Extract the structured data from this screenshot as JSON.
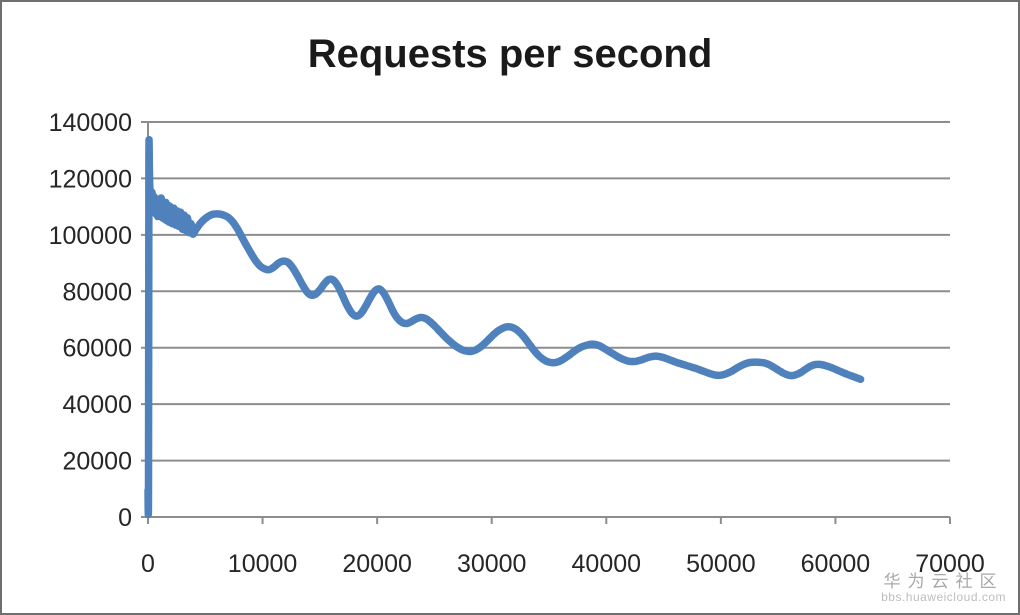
{
  "title": "Requests per second",
  "watermark": {
    "name": "华为云社区",
    "site": "bbs.huaweicloud.com"
  },
  "colors": {
    "line": "#4F81BD",
    "grid": "#8d8d8d",
    "axis_text": "#262626",
    "title_text": "#1a1a1a"
  },
  "chart_data": {
    "type": "line",
    "title": "Requests per second",
    "xlabel": "",
    "ylabel": "",
    "xlim": [
      0,
      70000
    ],
    "ylim": [
      0,
      140000
    ],
    "x_ticks": [
      0,
      10000,
      20000,
      30000,
      40000,
      50000,
      60000,
      70000
    ],
    "y_ticks": [
      0,
      20000,
      40000,
      60000,
      80000,
      100000,
      120000,
      140000
    ],
    "grid": "horizontal",
    "legend_position": "none",
    "series": [
      {
        "name": "Requests per second",
        "color": "#4F81BD",
        "smooth": true,
        "points": [
          [
            0,
            9500
          ],
          [
            40,
            9500
          ],
          [
            80,
            125500
          ],
          [
            120,
            123500
          ],
          [
            160,
            117000
          ],
          [
            250,
            113500
          ],
          [
            350,
            115000
          ],
          [
            450,
            109000
          ],
          [
            550,
            113500
          ],
          [
            650,
            107500
          ],
          [
            750,
            112500
          ],
          [
            850,
            106500
          ],
          [
            950,
            112000
          ],
          [
            1050,
            110000
          ],
          [
            1150,
            113000
          ],
          [
            1250,
            106000
          ],
          [
            1350,
            111000
          ],
          [
            1450,
            105500
          ],
          [
            1550,
            111500
          ],
          [
            1650,
            105000
          ],
          [
            1750,
            110500
          ],
          [
            1850,
            104500
          ],
          [
            1950,
            110000
          ],
          [
            2100,
            104000
          ],
          [
            2250,
            109500
          ],
          [
            2400,
            103500
          ],
          [
            2550,
            108500
          ],
          [
            2700,
            103000
          ],
          [
            2850,
            108000
          ],
          [
            3000,
            102000
          ],
          [
            3150,
            107000
          ],
          [
            3300,
            101500
          ],
          [
            3450,
            106000
          ],
          [
            3600,
            100800
          ],
          [
            3750,
            104000
          ],
          [
            3900,
            100300
          ],
          [
            4200,
            102000
          ],
          [
            4600,
            104200
          ],
          [
            5000,
            105800
          ],
          [
            5400,
            106900
          ],
          [
            5800,
            107400
          ],
          [
            6200,
            107400
          ],
          [
            6600,
            107000
          ],
          [
            7000,
            106200
          ],
          [
            7400,
            104600
          ],
          [
            7800,
            102200
          ],
          [
            8200,
            99200
          ],
          [
            8600,
            96200
          ],
          [
            9000,
            93400
          ],
          [
            9400,
            90800
          ],
          [
            9800,
            88900
          ],
          [
            10200,
            87900
          ],
          [
            10600,
            87700
          ],
          [
            11000,
            88600
          ],
          [
            11400,
            90000
          ],
          [
            11800,
            90700
          ],
          [
            12200,
            90300
          ],
          [
            12600,
            88500
          ],
          [
            13000,
            85900
          ],
          [
            13400,
            82900
          ],
          [
            13800,
            80200
          ],
          [
            14200,
            78700
          ],
          [
            14600,
            78900
          ],
          [
            15000,
            80500
          ],
          [
            15400,
            82700
          ],
          [
            15800,
            84200
          ],
          [
            16200,
            83900
          ],
          [
            16600,
            81700
          ],
          [
            17000,
            78300
          ],
          [
            17400,
            74800
          ],
          [
            17800,
            72200
          ],
          [
            18200,
            71200
          ],
          [
            18600,
            72200
          ],
          [
            19000,
            74700
          ],
          [
            19400,
            77700
          ],
          [
            19800,
            80100
          ],
          [
            20200,
            80800
          ],
          [
            20600,
            79200
          ],
          [
            21000,
            76200
          ],
          [
            21400,
            72800
          ],
          [
            21800,
            70300
          ],
          [
            22200,
            68900
          ],
          [
            22600,
            68600
          ],
          [
            23000,
            69300
          ],
          [
            23400,
            70200
          ],
          [
            23800,
            70700
          ],
          [
            24200,
            70400
          ],
          [
            24600,
            69300
          ],
          [
            25000,
            67800
          ],
          [
            25400,
            66100
          ],
          [
            25800,
            64400
          ],
          [
            26200,
            62800
          ],
          [
            26600,
            61400
          ],
          [
            27000,
            60200
          ],
          [
            27400,
            59300
          ],
          [
            27800,
            58800
          ],
          [
            28200,
            58700
          ],
          [
            28600,
            59200
          ],
          [
            29000,
            60200
          ],
          [
            29400,
            61600
          ],
          [
            29800,
            63200
          ],
          [
            30200,
            64800
          ],
          [
            30600,
            66100
          ],
          [
            31000,
            67000
          ],
          [
            31400,
            67400
          ],
          [
            31800,
            67200
          ],
          [
            32200,
            66300
          ],
          [
            32600,
            64800
          ],
          [
            33000,
            62800
          ],
          [
            33400,
            60600
          ],
          [
            33800,
            58500
          ],
          [
            34200,
            56800
          ],
          [
            34600,
            55600
          ],
          [
            35000,
            54900
          ],
          [
            35400,
            54700
          ],
          [
            35800,
            55000
          ],
          [
            36200,
            55800
          ],
          [
            36600,
            56900
          ],
          [
            37000,
            58100
          ],
          [
            37400,
            59300
          ],
          [
            37800,
            60200
          ],
          [
            38200,
            60800
          ],
          [
            38600,
            61200
          ],
          [
            39000,
            61200
          ],
          [
            39400,
            60700
          ],
          [
            39800,
            59800
          ],
          [
            40200,
            58800
          ],
          [
            40600,
            57800
          ],
          [
            41000,
            56800
          ],
          [
            41400,
            56000
          ],
          [
            41800,
            55400
          ],
          [
            42200,
            55100
          ],
          [
            42600,
            55200
          ],
          [
            43000,
            55600
          ],
          [
            43400,
            56200
          ],
          [
            43800,
            56700
          ],
          [
            44200,
            57000
          ],
          [
            44600,
            56900
          ],
          [
            45000,
            56500
          ],
          [
            45400,
            55900
          ],
          [
            45800,
            55300
          ],
          [
            46200,
            54700
          ],
          [
            46600,
            54200
          ],
          [
            47000,
            53700
          ],
          [
            47400,
            53200
          ],
          [
            47800,
            52700
          ],
          [
            48200,
            52100
          ],
          [
            48600,
            51500
          ],
          [
            49000,
            50900
          ],
          [
            49400,
            50400
          ],
          [
            49800,
            50200
          ],
          [
            50200,
            50400
          ],
          [
            50600,
            51000
          ],
          [
            51000,
            51800
          ],
          [
            51400,
            52800
          ],
          [
            51800,
            53700
          ],
          [
            52200,
            54400
          ],
          [
            52600,
            54800
          ],
          [
            53000,
            54900
          ],
          [
            53400,
            54800
          ],
          [
            53800,
            54600
          ],
          [
            54200,
            54000
          ],
          [
            54600,
            53100
          ],
          [
            55000,
            52100
          ],
          [
            55400,
            51100
          ],
          [
            55800,
            50400
          ],
          [
            56200,
            50100
          ],
          [
            56600,
            50500
          ],
          [
            57000,
            51300
          ],
          [
            57400,
            52400
          ],
          [
            57800,
            53400
          ],
          [
            58200,
            54000
          ],
          [
            58600,
            54100
          ],
          [
            59000,
            53800
          ],
          [
            59400,
            53300
          ],
          [
            59800,
            52700
          ],
          [
            60200,
            52000
          ],
          [
            60600,
            51300
          ],
          [
            61000,
            50600
          ],
          [
            61400,
            50000
          ],
          [
            61800,
            49400
          ],
          [
            62200,
            48800
          ]
        ]
      }
    ]
  }
}
